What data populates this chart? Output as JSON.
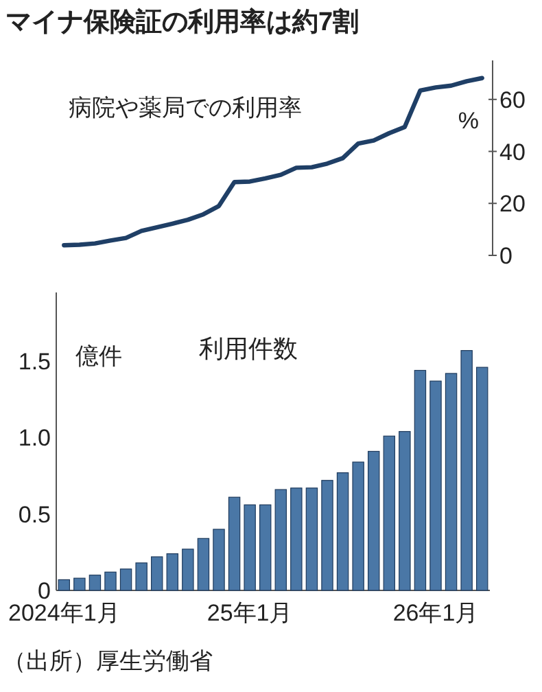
{
  "chart_data": [
    {
      "type": "line",
      "title": "マイナ保険証の利用率は約7割",
      "subtitle": "病院や薬局での利用率",
      "ylabel": "%",
      "categories": [
        null,
        null,
        null,
        null,
        null,
        null,
        null,
        null,
        null,
        null,
        null,
        null,
        null,
        null,
        null,
        null,
        null,
        null,
        null,
        null,
        null,
        null,
        null,
        null,
        null,
        null,
        null,
        null
      ],
      "series": [
        {
          "color": "#1f3f66",
          "values": [
            3.9,
            4.1,
            4.6,
            5.7,
            6.7,
            9.4,
            10.8,
            12.2,
            13.7,
            15.8,
            19,
            28.2,
            28.4,
            29.6,
            31,
            33.7,
            33.9,
            35.3,
            37.4,
            43,
            44.2,
            47,
            49.4,
            63.4,
            64.6,
            65.3,
            67,
            68.2
          ]
        }
      ],
      "ylim": [
        0,
        75
      ],
      "yticks": [
        0,
        20,
        40,
        60
      ],
      "tick_labels": "y",
      "marker": "none",
      "line_style": "solid"
    },
    {
      "type": "bar",
      "title": "利用件数",
      "ylabel": "億件",
      "categories": [
        "2024年1月",
        null,
        null,
        null,
        null,
        null,
        null,
        null,
        null,
        null,
        null,
        null,
        "25年1月",
        null,
        null,
        null,
        null,
        null,
        null,
        null,
        null,
        null,
        null,
        null,
        "26年1月",
        null,
        null,
        null
      ],
      "series": [
        {
          "color": "#4a77a6",
          "values": [
            0.07,
            0.08,
            0.1,
            0.12,
            0.14,
            0.18,
            0.22,
            0.24,
            0.27,
            0.34,
            0.4,
            0.61,
            0.56,
            0.56,
            0.66,
            0.67,
            0.67,
            0.72,
            0.77,
            0.84,
            0.91,
            1.01,
            1.04,
            1.44,
            1.37,
            1.42,
            1.57,
            1.46
          ]
        }
      ],
      "ylim": [
        0,
        1.95
      ],
      "yticks": [
        {
          "value": 0,
          "label": "0"
        },
        0.5,
        {
          "value": 1,
          "label": "1.0"
        },
        1.5
      ],
      "annotations": [
        "（出所）厚生労働省"
      ]
    }
  ]
}
